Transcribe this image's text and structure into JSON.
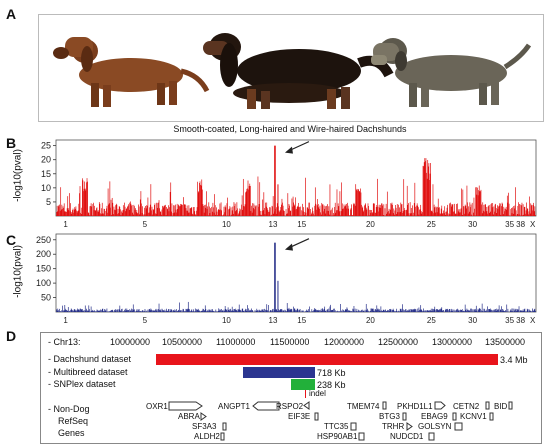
{
  "panels": {
    "a": "A",
    "b": "B",
    "c": "C",
    "d": "D"
  },
  "photo_caption": "Smooth-coated, Long-haired and Wire-haired Dachshunds",
  "dogs": [
    {
      "icon": "smooth-coated-dachshund-photo",
      "coat": "#8a4a24"
    },
    {
      "icon": "long-haired-dachshund-photo",
      "coat": "#1d130d"
    },
    {
      "icon": "wire-haired-dachshund-photo",
      "coat": "#6a6558"
    }
  ],
  "panel_b": {
    "ylabel": "-log10(pval)",
    "yticks": [
      "25",
      "20",
      "15",
      "10",
      "5"
    ],
    "chromosomes": [
      "1",
      "5",
      "10",
      "13",
      "15",
      "20",
      "25",
      "30",
      "35",
      "38",
      "X"
    ],
    "color": "#e01010"
  },
  "panel_c": {
    "ylabel": "-log10(pval)",
    "yticks": [
      "250",
      "200",
      "150",
      "100",
      "50"
    ],
    "chromosomes": [
      "1",
      "5",
      "10",
      "13",
      "15",
      "20",
      "25",
      "30",
      "35",
      "38",
      "X"
    ],
    "color": "#27308a"
  },
  "chart_data": [
    {
      "type": "scatter",
      "title": "",
      "ylabel": "-log10(pval)",
      "ylim": [
        0,
        27
      ],
      "chromosome_ticks": [
        "1",
        "5",
        "10",
        "13",
        "15",
        "20",
        "25",
        "30",
        "35",
        "38",
        "X"
      ],
      "peak": {
        "chromosome": "13",
        "value": 25
      },
      "series": [
        {
          "name": "Dachshund dataset",
          "color": "#e01010"
        }
      ]
    },
    {
      "type": "scatter",
      "title": "",
      "ylabel": "-log10(pval)",
      "ylim": [
        0,
        270
      ],
      "chromosome_ticks": [
        "1",
        "5",
        "10",
        "13",
        "15",
        "20",
        "25",
        "30",
        "35",
        "38",
        "X"
      ],
      "peak": {
        "chromosome": "13",
        "value": 240
      },
      "series": [
        {
          "name": "Multibreed dataset",
          "color": "#27308a"
        }
      ]
    }
  ],
  "panel_d": {
    "chr_label": "- Chr13:",
    "positions": [
      "10000000",
      "10500000",
      "11000000",
      "11500000",
      "12000000",
      "12500000",
      "13000000",
      "13500000"
    ],
    "datasets": [
      {
        "label": "- Dachshund dataset",
        "size": "3.4 Mb",
        "color": "#e8141b"
      },
      {
        "label": "- Multibreed dataset",
        "size": "718 Kb",
        "color": "#2b3590"
      },
      {
        "label": "- SNPlex dataset",
        "size": "238 Kb",
        "color": "#22b03a"
      }
    ],
    "indel": "indel",
    "refseq_label": [
      "- Non-Dog",
      "RefSeq",
      "Genes"
    ],
    "genes": [
      "OXR1",
      "ABRA",
      "SF3A3",
      "ALDH2",
      "ANGPT1",
      "RSPO2",
      "EIF3E",
      "TTC35",
      "HSP90AB1",
      "TMEM74",
      "BTG3",
      "TRHR",
      "NUDCD1",
      "PKHD1L1",
      "EBAG9",
      "GOLSYN",
      "CETN2",
      "KCNV1",
      "BID"
    ]
  }
}
